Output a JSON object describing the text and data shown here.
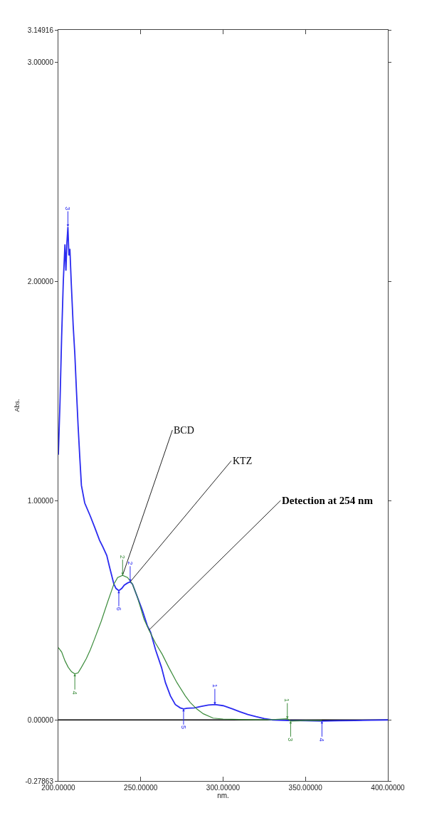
{
  "chart_data": {
    "type": "line",
    "xlabel": "nm.",
    "ylabel": "Abs.",
    "xlim": [
      200,
      400
    ],
    "ylim": [
      -0.27863,
      3.14916
    ],
    "xticks": [
      {
        "value": 200,
        "label": "200.00000"
      },
      {
        "value": 250,
        "label": "250.00000"
      },
      {
        "value": 300,
        "label": "300.00000"
      },
      {
        "value": 350,
        "label": "350.00000"
      },
      {
        "value": 400,
        "label": "400.00000"
      }
    ],
    "yticks": [
      {
        "value": -0.27863,
        "label": "-0.27863"
      },
      {
        "value": 0,
        "label": "0.00000"
      },
      {
        "value": 1,
        "label": "1.00000"
      },
      {
        "value": 2,
        "label": "2.00000"
      },
      {
        "value": 3,
        "label": "3.00000"
      },
      {
        "value": 3.14916,
        "label": "3.14916"
      }
    ],
    "grid": false,
    "marker": "none",
    "line_style": "solid",
    "ref_lines": [
      {
        "axis": "y",
        "value": 0,
        "color": "#000000"
      }
    ],
    "series": [
      {
        "color": "#2b2bf0",
        "x": [
          200,
          201,
          202,
          203,
          204,
          204.6,
          205.2,
          205.8,
          206.4,
          207,
          207.8,
          209,
          210,
          211,
          212,
          213,
          214,
          216,
          219.4,
          222,
          225,
          227,
          229.4,
          231,
          233.7,
          235,
          236.7,
          238.5,
          240,
          242,
          243.6,
          245,
          248,
          251,
          254,
          256,
          259,
          262.6,
          265,
          268,
          271,
          274,
          276,
          278,
          282.5,
          287,
          291,
          295,
          300,
          305.8,
          310,
          315,
          320,
          325,
          330,
          340,
          350,
          360,
          370,
          380,
          390,
          400
        ],
        "values": [
          1.21,
          1.45,
          1.75,
          2.0,
          2.17,
          2.05,
          2.18,
          2.25,
          2.12,
          2.15,
          2.0,
          1.8,
          1.67,
          1.5,
          1.34,
          1.2,
          1.07,
          0.99,
          0.93,
          0.88,
          0.82,
          0.79,
          0.75,
          0.7,
          0.62,
          0.6,
          0.59,
          0.6,
          0.615,
          0.625,
          0.63,
          0.62,
          0.56,
          0.5,
          0.43,
          0.4,
          0.32,
          0.24,
          0.17,
          0.11,
          0.07,
          0.055,
          0.05,
          0.053,
          0.055,
          0.062,
          0.068,
          0.07,
          0.065,
          0.05,
          0.038,
          0.025,
          0.015,
          0.006,
          0.0,
          -0.003,
          -0.004,
          -0.005,
          -0.004,
          -0.003,
          -0.001,
          0
        ]
      },
      {
        "color": "#3c8c3c",
        "x": [
          200,
          202,
          204,
          206,
          208,
          210,
          212,
          214,
          217,
          219.4,
          222,
          226,
          230,
          233.7,
          236,
          239,
          242,
          245,
          248,
          252,
          255,
          259,
          263,
          267,
          272,
          277,
          280,
          284,
          288,
          294,
          300,
          310,
          320,
          330,
          339,
          341,
          350,
          360
        ],
        "values": [
          0.33,
          0.31,
          0.27,
          0.24,
          0.22,
          0.21,
          0.215,
          0.24,
          0.28,
          0.32,
          0.37,
          0.45,
          0.54,
          0.62,
          0.65,
          0.66,
          0.65,
          0.62,
          0.56,
          0.46,
          0.41,
          0.35,
          0.3,
          0.24,
          0.17,
          0.11,
          0.08,
          0.05,
          0.028,
          0.008,
          0.004,
          0.002,
          0.001,
          0.001,
          0.005,
          -0.005,
          -0.003,
          -0.003
        ]
      }
    ],
    "annotations": [
      {
        "text": "BCD",
        "x": 239,
        "y": 0.66
      },
      {
        "text": "KTZ",
        "x": 243.6,
        "y": 0.63
      },
      {
        "text": "Detection at 254 nm",
        "x": 255,
        "y": 0.41
      },
      {
        "text": "3",
        "x": 205.8,
        "y": 2.25
      },
      {
        "text": "2",
        "x": 243.6,
        "y": 0.63
      },
      {
        "text": "6",
        "x": 236.7,
        "y": 0.59
      },
      {
        "text": "5",
        "x": 276,
        "y": 0.05
      },
      {
        "text": "1",
        "x": 295,
        "y": 0.07
      },
      {
        "text": "4",
        "x": 360,
        "y": -0.005
      },
      {
        "text": "2",
        "x": 239,
        "y": 0.66
      },
      {
        "text": "4",
        "x": 210,
        "y": 0.21
      },
      {
        "text": "1",
        "x": 339,
        "y": 0.005
      },
      {
        "text": "3",
        "x": 341,
        "y": -0.005
      }
    ]
  }
}
